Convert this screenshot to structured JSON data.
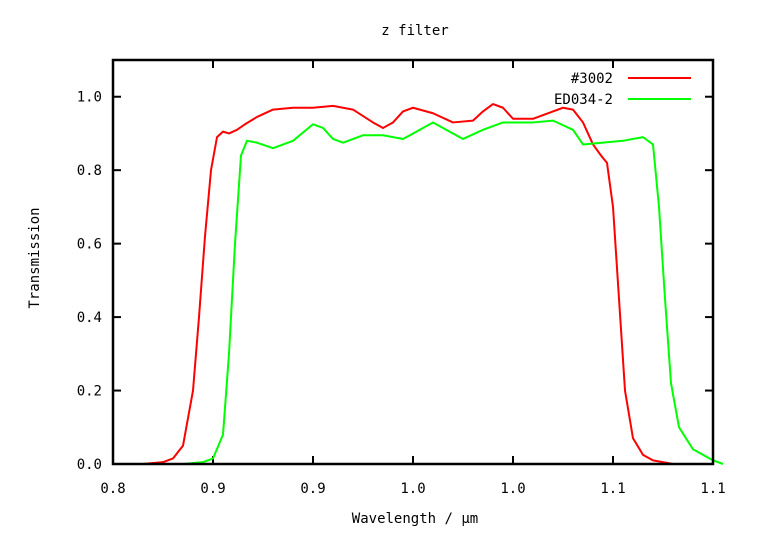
{
  "chart_data": {
    "type": "line",
    "title": "z filter",
    "xlabel": "Wavelength / µm",
    "ylabel": "Transmission",
    "xlim": [
      0.8,
      1.1
    ],
    "ylim": [
      0.0,
      1.1
    ],
    "x_ticks": [
      {
        "value": 0.8,
        "label": "0.8"
      },
      {
        "value": 0.85,
        "label": "0.9"
      },
      {
        "value": 0.9,
        "label": "0.9"
      },
      {
        "value": 0.95,
        "label": "1.0"
      },
      {
        "value": 1.0,
        "label": "1.0"
      },
      {
        "value": 1.05,
        "label": "1.1"
      },
      {
        "value": 1.1,
        "label": "1.1"
      }
    ],
    "y_ticks": [
      {
        "value": 0.0,
        "label": "0.0"
      },
      {
        "value": 0.2,
        "label": "0.2"
      },
      {
        "value": 0.4,
        "label": "0.4"
      },
      {
        "value": 0.6,
        "label": "0.6"
      },
      {
        "value": 0.8,
        "label": "0.8"
      },
      {
        "value": 1.0,
        "label": "1.0"
      }
    ],
    "grid": false,
    "legend_position": "top-right",
    "series": [
      {
        "name": "#3002",
        "color": "#ff0000",
        "points": [
          [
            0.815,
            0.0
          ],
          [
            0.825,
            0.005
          ],
          [
            0.83,
            0.015
          ],
          [
            0.835,
            0.05
          ],
          [
            0.84,
            0.2
          ],
          [
            0.843,
            0.4
          ],
          [
            0.846,
            0.62
          ],
          [
            0.849,
            0.8
          ],
          [
            0.852,
            0.89
          ],
          [
            0.855,
            0.905
          ],
          [
            0.858,
            0.9
          ],
          [
            0.862,
            0.91
          ],
          [
            0.866,
            0.925
          ],
          [
            0.872,
            0.945
          ],
          [
            0.88,
            0.965
          ],
          [
            0.89,
            0.97
          ],
          [
            0.9,
            0.97
          ],
          [
            0.91,
            0.975
          ],
          [
            0.92,
            0.965
          ],
          [
            0.93,
            0.93
          ],
          [
            0.935,
            0.915
          ],
          [
            0.94,
            0.93
          ],
          [
            0.945,
            0.96
          ],
          [
            0.95,
            0.97
          ],
          [
            0.96,
            0.955
          ],
          [
            0.97,
            0.93
          ],
          [
            0.98,
            0.935
          ],
          [
            0.985,
            0.96
          ],
          [
            0.99,
            0.98
          ],
          [
            0.995,
            0.97
          ],
          [
            1.0,
            0.94
          ],
          [
            1.01,
            0.94
          ],
          [
            1.02,
            0.96
          ],
          [
            1.025,
            0.97
          ],
          [
            1.03,
            0.965
          ],
          [
            1.035,
            0.93
          ],
          [
            1.04,
            0.87
          ],
          [
            1.044,
            0.84
          ],
          [
            1.047,
            0.82
          ],
          [
            1.05,
            0.7
          ],
          [
            1.053,
            0.45
          ],
          [
            1.056,
            0.2
          ],
          [
            1.06,
            0.07
          ],
          [
            1.065,
            0.025
          ],
          [
            1.07,
            0.01
          ],
          [
            1.08,
            0.0
          ]
        ]
      },
      {
        "name": "ED034-2",
        "color": "#00ff00",
        "points": [
          [
            0.835,
            0.0
          ],
          [
            0.845,
            0.005
          ],
          [
            0.85,
            0.015
          ],
          [
            0.855,
            0.08
          ],
          [
            0.858,
            0.3
          ],
          [
            0.861,
            0.6
          ],
          [
            0.864,
            0.84
          ],
          [
            0.867,
            0.88
          ],
          [
            0.872,
            0.875
          ],
          [
            0.88,
            0.86
          ],
          [
            0.89,
            0.88
          ],
          [
            0.9,
            0.925
          ],
          [
            0.905,
            0.915
          ],
          [
            0.91,
            0.885
          ],
          [
            0.915,
            0.875
          ],
          [
            0.925,
            0.895
          ],
          [
            0.935,
            0.895
          ],
          [
            0.945,
            0.885
          ],
          [
            0.955,
            0.915
          ],
          [
            0.96,
            0.93
          ],
          [
            0.965,
            0.915
          ],
          [
            0.975,
            0.885
          ],
          [
            0.985,
            0.91
          ],
          [
            0.995,
            0.93
          ],
          [
            1.01,
            0.93
          ],
          [
            1.02,
            0.935
          ],
          [
            1.03,
            0.91
          ],
          [
            1.035,
            0.87
          ],
          [
            1.045,
            0.875
          ],
          [
            1.055,
            0.88
          ],
          [
            1.065,
            0.89
          ],
          [
            1.07,
            0.87
          ],
          [
            1.073,
            0.7
          ],
          [
            1.076,
            0.45
          ],
          [
            1.079,
            0.22
          ],
          [
            1.083,
            0.1
          ],
          [
            1.09,
            0.04
          ],
          [
            1.1,
            0.01
          ],
          [
            1.105,
            0.0
          ]
        ]
      }
    ]
  }
}
